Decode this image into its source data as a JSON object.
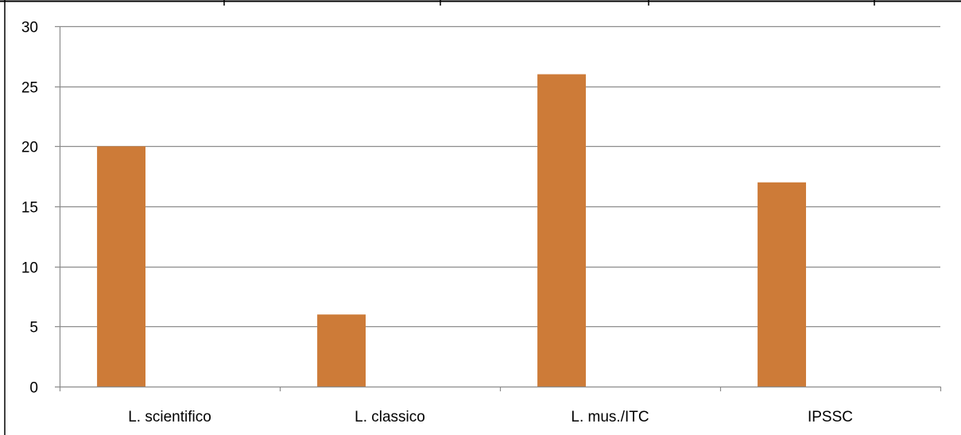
{
  "chart_data": {
    "type": "bar",
    "categories": [
      "L. scientifico",
      "L. classico",
      "L. mus./ITC",
      "IPSSC"
    ],
    "series": [
      {
        "values": [
          20,
          6,
          26,
          17
        ],
        "color": "#CD7B38"
      }
    ],
    "title": "",
    "xlabel": "",
    "ylabel": "",
    "ylim": [
      0,
      30
    ],
    "yticks": [
      0,
      5,
      10,
      15,
      20,
      25,
      30
    ],
    "grid": true,
    "legend": "none",
    "colors": {
      "bar": "#CD7B38",
      "grid": "#8C8C8C",
      "axis": "#8C8C8C",
      "frame": "#000000"
    }
  }
}
